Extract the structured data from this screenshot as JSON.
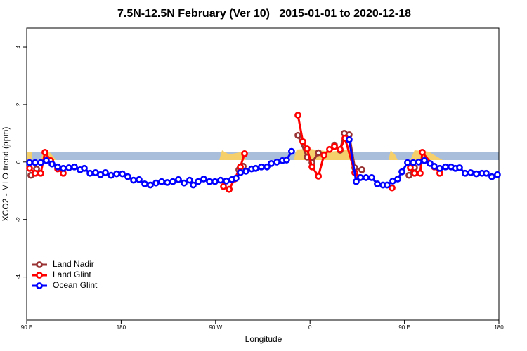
{
  "chart_data": {
    "type": "line",
    "title": "7.5N-12.5N February (Ver 10)   2015-01-01 to 2020-12-18",
    "x_label": "Longitude",
    "y_label": "XCO2 - MLO trend (ppm)",
    "xlim": [
      90,
      540
    ],
    "xticks": [
      {
        "value": 90,
        "label": "90 E"
      },
      {
        "value": 180,
        "label": "180"
      },
      {
        "value": 270,
        "label": "90 W"
      },
      {
        "value": 360,
        "label": "0"
      },
      {
        "value": 450,
        "label": "90 E"
      },
      {
        "value": 540,
        "label": "180"
      }
    ],
    "ylim": [
      -5.5,
      4.66
    ],
    "yticks": [
      -4,
      -2,
      0,
      2,
      4
    ],
    "legend": "bottom-left",
    "series": [
      {
        "name": "Land Nadir",
        "color": "#993333",
        "x": [
          94.0,
          99.4,
          null,
          282.9,
          null,
          292.2,
          296.3,
          null,
          348.5,
          357.2,
          361.9,
          368.0,
          null,
          383.3,
          388.7,
          392.6,
          397.3,
          402.7,
          409.4,
          null,
          454.3,
          459.6
        ],
        "values": [
          -0.46,
          -0.24,
          null,
          -0.95,
          null,
          -0.27,
          -0.15,
          null,
          0.93,
          0.17,
          -0.02,
          0.32,
          null,
          0.59,
          0.41,
          1.0,
          0.95,
          -0.2,
          -0.27,
          null,
          -0.46,
          -0.2
        ]
      },
      {
        "name": "Land Glint",
        "color": "#ff0000",
        "x": [
          92.7,
          98.0,
          103.4,
          107.4,
          112.8,
          119.5,
          124.8,
          null,
          277.5,
          282.9,
          288.2,
          293.6,
          297.6,
          null,
          348.5,
          353.2,
          357.2,
          361.9,
          368.0,
          373.3,
          378.6,
          383.3,
          388.7,
          393.3,
          402.7,
          407.4,
          null,
          438.2,
          null,
          455.6,
          459.6,
          465.0,
          467.0,
          478.4,
          483.7
        ],
        "values": [
          -0.22,
          -0.39,
          -0.39,
          0.34,
          0.05,
          -0.24,
          -0.39,
          null,
          -0.85,
          -0.95,
          -0.59,
          -0.17,
          0.29,
          null,
          1.63,
          0.71,
          0.46,
          -0.17,
          -0.49,
          0.24,
          0.44,
          0.54,
          0.44,
          0.83,
          -0.37,
          -0.54,
          null,
          -0.9,
          null,
          -0.2,
          -0.39,
          -0.39,
          0.34,
          -0.17,
          -0.39
        ]
      },
      {
        "name": "Ocean Glint",
        "color": "#0000ff",
        "x": [
          92.7,
          98.0,
          103.4,
          108.7,
          114.1,
          119.5,
          124.8,
          130.2,
          135.5,
          140.9,
          144.9,
          150.3,
          155.6,
          160.3,
          165.0,
          170.4,
          175.7,
          181.1,
          186.4,
          191.8,
          197.1,
          202.5,
          207.8,
          213.2,
          218.6,
          223.9,
          229.3,
          234.6,
          240.0,
          245.3,
          248.7,
          253.4,
          258.7,
          264.1,
          269.4,
          274.8,
          280.2,
          285.5,
          289.5,
          293.6,
          298.9,
          304.3,
          308.3,
          313.6,
          319.0,
          323.0,
          328.4,
          333.7,
          337.7,
          342.4,
          null,
          397.3,
          404.0,
          408.1,
          413.4,
          418.8,
          424.1,
          429.5,
          433.5,
          438.9,
          443.6,
          447.6,
          452.9,
          458.3,
          463.6,
          469.0,
          474.4,
          478.4,
          483.7,
          489.1,
          494.4,
          498.5,
          502.5,
          507.8,
          513.2,
          518.5,
          523.9,
          527.9,
          533.3,
          538.6
        ],
        "values": [
          -0.02,
          -0.02,
          -0.02,
          0.05,
          -0.07,
          -0.17,
          -0.22,
          -0.2,
          -0.17,
          -0.27,
          -0.22,
          -0.39,
          -0.37,
          -0.44,
          -0.37,
          -0.46,
          -0.41,
          -0.41,
          -0.51,
          -0.63,
          -0.61,
          -0.76,
          -0.8,
          -0.73,
          -0.68,
          -0.71,
          -0.68,
          -0.61,
          -0.73,
          -0.63,
          -0.8,
          -0.68,
          -0.59,
          -0.68,
          -0.68,
          -0.63,
          -0.66,
          -0.61,
          -0.56,
          -0.37,
          -0.32,
          -0.24,
          -0.22,
          -0.17,
          -0.17,
          -0.05,
          0.0,
          0.05,
          0.07,
          0.37,
          null,
          0.78,
          -0.68,
          -0.54,
          -0.54,
          -0.54,
          -0.76,
          -0.8,
          -0.8,
          -0.66,
          -0.59,
          -0.34,
          -0.02,
          -0.02,
          0.0,
          0.05,
          -0.05,
          -0.15,
          -0.22,
          -0.17,
          -0.17,
          -0.22,
          -0.2,
          -0.39,
          -0.37,
          -0.41,
          -0.39,
          -0.39,
          -0.51,
          -0.44
        ]
      }
    ]
  }
}
